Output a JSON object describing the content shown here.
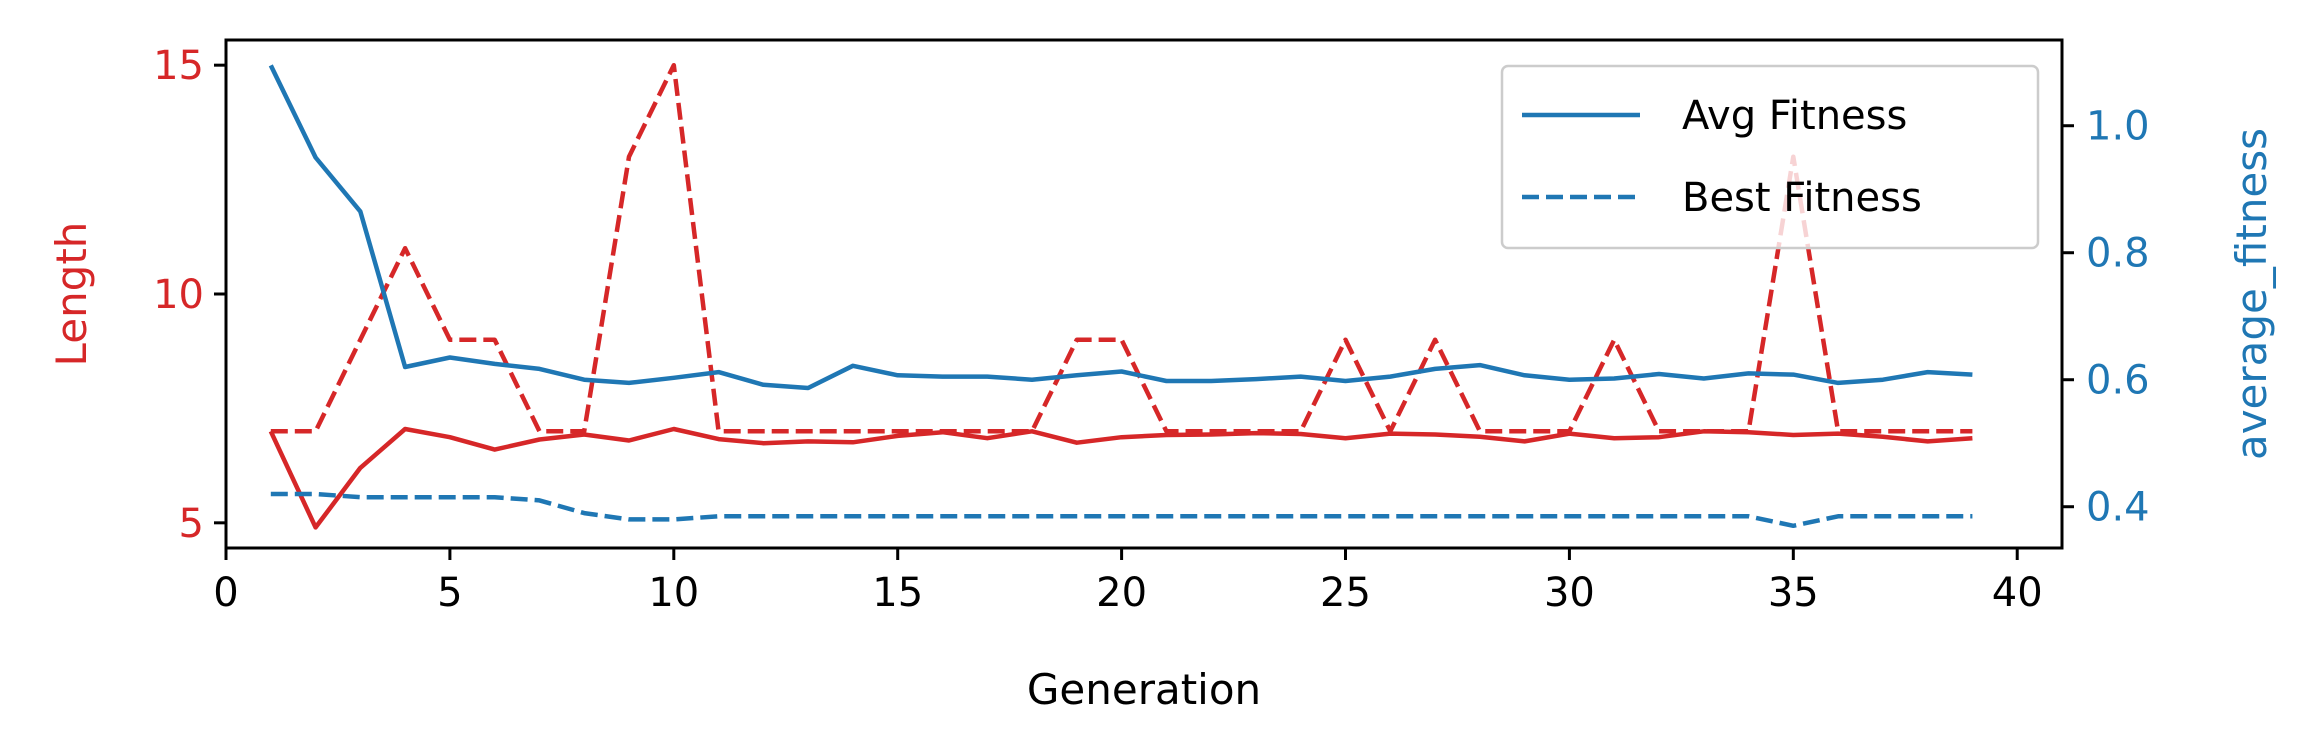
{
  "chart_data": {
    "type": "line",
    "x_axis": {
      "label": "Generation",
      "range": [
        0,
        41
      ],
      "ticks": [
        0,
        5,
        10,
        15,
        20,
        25,
        30,
        35,
        40
      ],
      "tick_labels": [
        "0",
        "5",
        "10",
        "15",
        "20",
        "25",
        "30",
        "35",
        "40"
      ]
    },
    "y_axis_left": {
      "label": "Length",
      "range": [
        4.45,
        15.55
      ],
      "ticks": [
        5,
        10,
        15
      ],
      "tick_labels": [
        "5",
        "10",
        "15"
      ],
      "color": "#d62728"
    },
    "y_axis_right": {
      "label": "average_fitness",
      "range": [
        0.335,
        1.135
      ],
      "ticks": [
        0.4,
        0.6,
        0.8,
        1.0
      ],
      "tick_labels": [
        "0.4",
        "0.6",
        "0.8",
        "1.0"
      ],
      "color": "#1f77b4"
    },
    "grid": false,
    "legend": {
      "placement": "top-right",
      "entries": [
        {
          "label": "Avg Fitness",
          "style": "solid",
          "color": "#1f77b4"
        },
        {
          "label": "Best Fitness",
          "style": "dashed",
          "color": "#1f77b4"
        }
      ]
    },
    "x": [
      1,
      2,
      3,
      4,
      5,
      6,
      7,
      8,
      9,
      10,
      11,
      12,
      13,
      14,
      15,
      16,
      17,
      18,
      19,
      20,
      21,
      22,
      23,
      24,
      25,
      26,
      27,
      28,
      29,
      30,
      31,
      32,
      33,
      34,
      35,
      36,
      37,
      38,
      39
    ],
    "series": [
      {
        "axis": "left",
        "color": "#d62728",
        "style": "solid",
        "values": [
          7.0,
          4.9,
          6.2,
          7.05,
          6.87,
          6.6,
          6.82,
          6.93,
          6.8,
          7.05,
          6.83,
          6.74,
          6.78,
          6.76,
          6.9,
          6.98,
          6.85,
          7.0,
          6.75,
          6.87,
          6.92,
          6.93,
          6.96,
          6.94,
          6.85,
          6.95,
          6.93,
          6.88,
          6.78,
          6.95,
          6.85,
          6.87,
          7.0,
          6.98,
          6.92,
          6.95,
          6.88,
          6.78,
          6.85
        ]
      },
      {
        "axis": "left",
        "color": "#d62728",
        "style": "dashed",
        "values": [
          7.0,
          7.0,
          9.0,
          11.0,
          9.0,
          9.0,
          7.0,
          7.0,
          13.0,
          15.0,
          7.0,
          7.0,
          7.0,
          7.0,
          7.0,
          7.0,
          7.0,
          7.0,
          9.0,
          9.0,
          7.0,
          7.0,
          7.0,
          7.0,
          9.0,
          7.0,
          9.0,
          7.0,
          7.0,
          7.0,
          9.0,
          7.0,
          7.0,
          7.0,
          13.0,
          7.0,
          7.0,
          7.0,
          7.0
        ]
      },
      {
        "axis": "right",
        "color": "#1f77b4",
        "style": "solid",
        "values": [
          1.095,
          0.95,
          0.865,
          0.62,
          0.635,
          0.625,
          0.617,
          0.6,
          0.595,
          0.603,
          0.612,
          0.592,
          0.587,
          0.622,
          0.607,
          0.605,
          0.605,
          0.6,
          0.607,
          0.613,
          0.598,
          0.598,
          0.601,
          0.605,
          0.598,
          0.605,
          0.617,
          0.623,
          0.607,
          0.6,
          0.602,
          0.609,
          0.602,
          0.61,
          0.608,
          0.595,
          0.6,
          0.612,
          0.608
        ]
      },
      {
        "axis": "right",
        "color": "#1f77b4",
        "style": "dashed",
        "values": [
          0.42,
          0.42,
          0.415,
          0.415,
          0.415,
          0.415,
          0.41,
          0.39,
          0.38,
          0.38,
          0.385,
          0.385,
          0.385,
          0.385,
          0.385,
          0.385,
          0.385,
          0.385,
          0.385,
          0.385,
          0.385,
          0.385,
          0.385,
          0.385,
          0.385,
          0.385,
          0.385,
          0.385,
          0.385,
          0.385,
          0.385,
          0.385,
          0.385,
          0.385,
          0.37,
          0.385,
          0.385,
          0.385,
          0.385
        ]
      }
    ]
  }
}
